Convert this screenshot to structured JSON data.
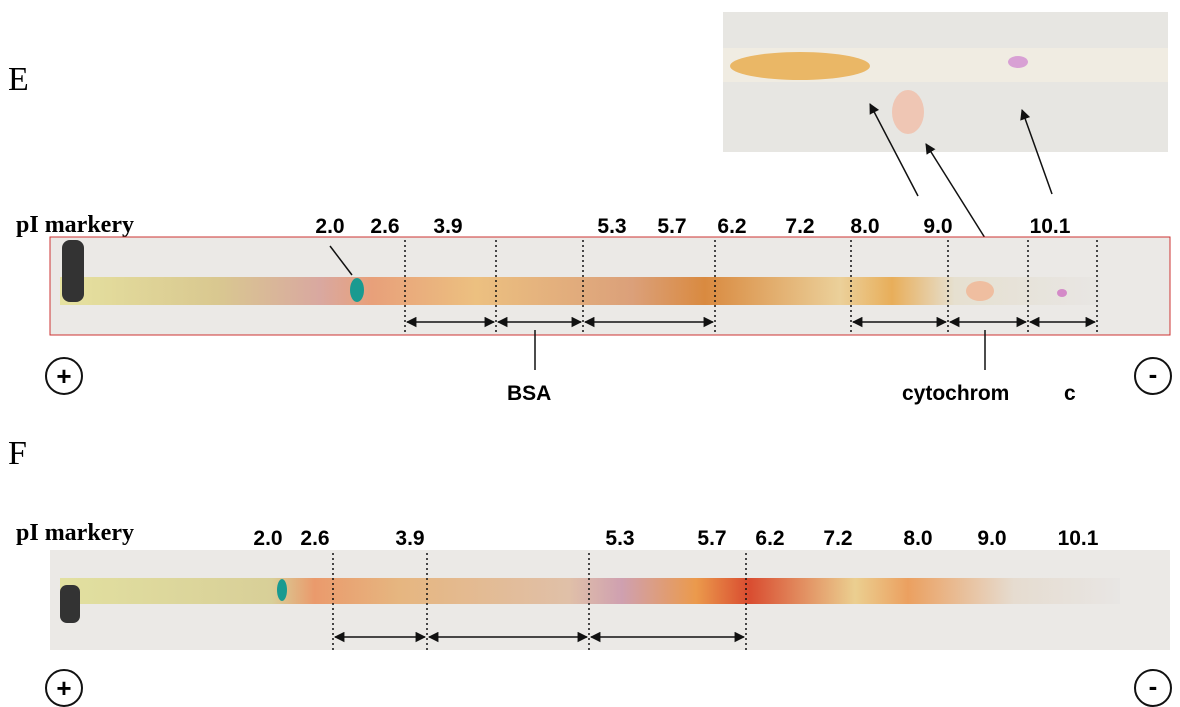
{
  "panels": [
    {
      "label": "E",
      "axis_label": "pI markery",
      "markers": [
        "2.0",
        "2.6",
        "3.9",
        "5.3",
        "5.7",
        "6.2",
        "7.2",
        "8.0",
        "9.0",
        "10.1"
      ],
      "annotations": [
        "BSA",
        "cytochrom",
        "c"
      ],
      "anode": "+",
      "cathode": "-"
    },
    {
      "label": "F",
      "axis_label": "pI markery",
      "markers": [
        "2.0",
        "2.6",
        "3.9",
        "5.3",
        "5.7",
        "6.2",
        "7.2",
        "8.0",
        "9.0",
        "10.1"
      ],
      "anode": "+",
      "cathode": "-"
    }
  ]
}
